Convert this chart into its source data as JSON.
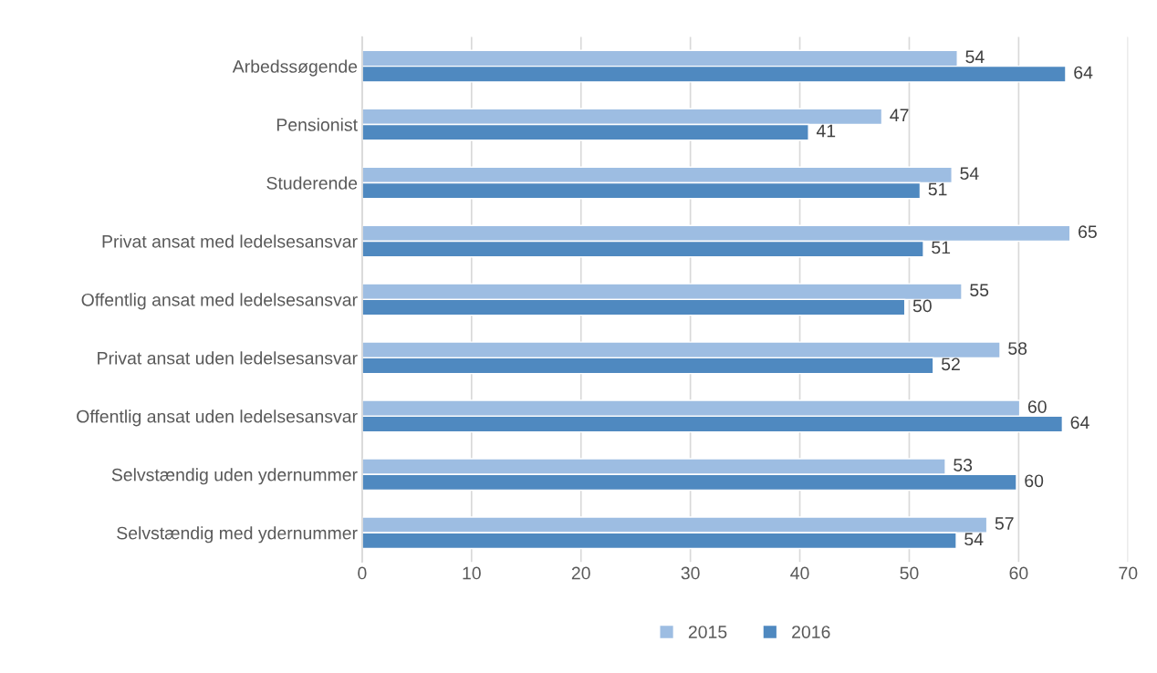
{
  "chart_data": {
    "type": "bar",
    "orientation": "horizontal",
    "categories": [
      "Arbedssøgende",
      "Pensionist",
      "Studerende",
      "Privat ansat med ledelsesansvar",
      "Offentlig ansat med ledelsesansvar",
      "Privat ansat uden ledelsesansvar",
      "Offentlig ansat uden ledelsesansvar",
      "Selvstændig uden ydernummer",
      "Selvstændig med ydernummer"
    ],
    "series": [
      {
        "name": "2015",
        "color": "#9dbde2",
        "values": [
          54.4,
          47.5,
          53.9,
          64.7,
          54.8,
          58.3,
          60.1,
          53.3,
          57.1
        ],
        "value_labels": [
          "54",
          "47",
          "54",
          "65",
          "55",
          "58",
          "60",
          "53",
          "57"
        ]
      },
      {
        "name": "2016",
        "color": "#4f89c0",
        "values": [
          64.3,
          40.8,
          51.0,
          51.3,
          49.6,
          52.2,
          64.0,
          59.8,
          54.3
        ],
        "value_labels": [
          "64",
          "41",
          "51",
          "51",
          "50",
          "52",
          "64",
          "60",
          "54"
        ]
      }
    ],
    "xlim": [
      0,
      70
    ],
    "xticks": [
      0,
      10,
      20,
      30,
      40,
      50,
      60,
      70
    ],
    "grid": "x",
    "legend": "bottom"
  }
}
